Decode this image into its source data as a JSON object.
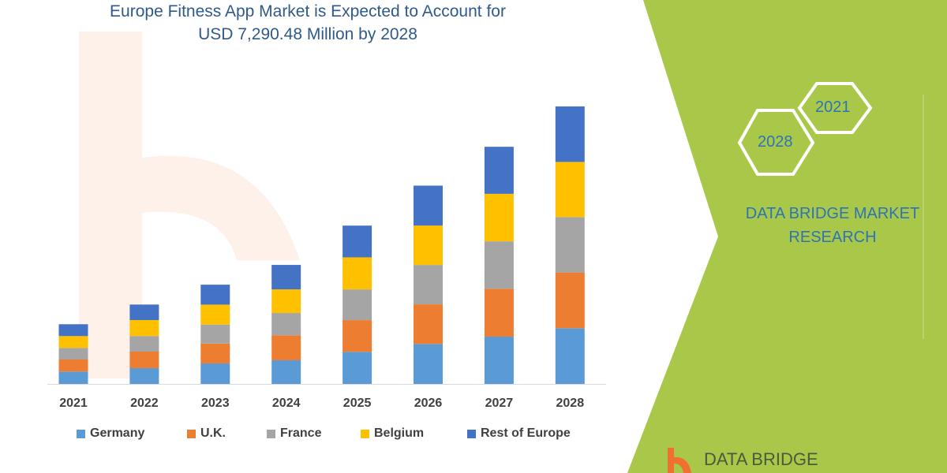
{
  "title_line1": "Europe Fitness App Market is Expected to Account for",
  "title_line2": "USD 7,290.48 Million by 2028",
  "brand": {
    "hex_2021": "2021",
    "hex_2028": "2028",
    "line1": "DATA BRIDGE MARKET",
    "line2": "RESEARCH",
    "logo_text": "DATA BRIDGE",
    "watermark": "DATA BRIDGE",
    "green": "#a9c84a"
  },
  "chart_data": {
    "type": "bar",
    "stacked": true,
    "title": "Europe Fitness App Market is Expected to Account for USD 7,290.48 Million by 2028",
    "categories": [
      "2021",
      "2022",
      "2023",
      "2024",
      "2025",
      "2026",
      "2027",
      "2028"
    ],
    "series": [
      {
        "name": "Germany",
        "color": "#5b9bd5",
        "values": [
          325,
          414,
          538,
          621,
          842,
          1049,
          1242,
          1464
        ]
      },
      {
        "name": "U.K.",
        "color": "#ed7d31",
        "values": [
          317,
          435,
          524,
          656,
          834,
          1041,
          1256,
          1464
        ]
      },
      {
        "name": "France",
        "color": "#a5a5a5",
        "values": [
          304,
          408,
          497,
          586,
          807,
          1035,
          1248,
          1455
        ]
      },
      {
        "name": "Belgium",
        "color": "#ffc000",
        "values": [
          311,
          420,
          524,
          621,
          842,
          1035,
          1248,
          1449
        ]
      },
      {
        "name": "Rest of Europe",
        "color": "#4472c4",
        "values": [
          311,
          408,
          524,
          642,
          834,
          1049,
          1236,
          1458
        ]
      }
    ],
    "unit": "USD Million",
    "legend": "bottom",
    "grid": false,
    "y_axis_shown": false
  }
}
